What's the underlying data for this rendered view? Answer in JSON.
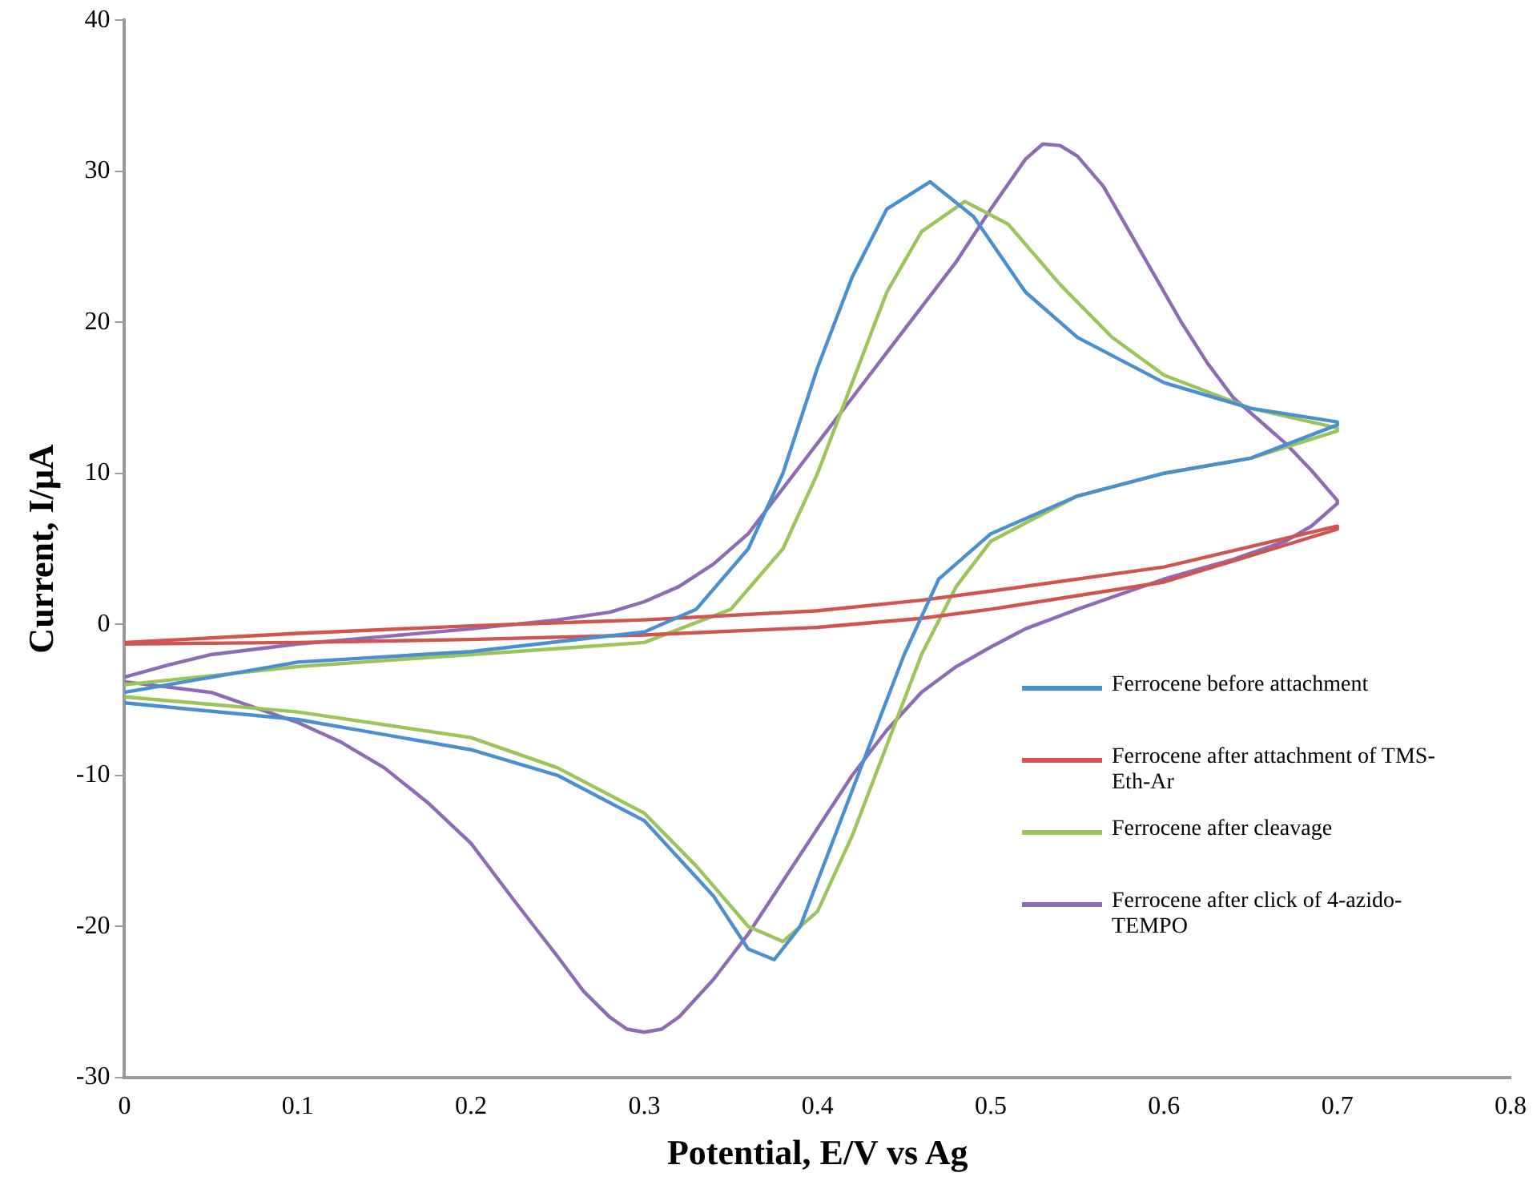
{
  "chart_data": {
    "type": "line",
    "xlabel": "Potential, E/V vs Ag",
    "ylabel": "Current, I/μA",
    "xlim": [
      0,
      0.8
    ],
    "xticks": [
      0,
      0.1,
      0.2,
      0.3,
      0.4,
      0.5,
      0.6,
      0.7,
      0.8
    ],
    "ylim": [
      -30,
      40
    ],
    "yticks": [
      -30,
      -20,
      -10,
      0,
      10,
      20,
      30,
      40
    ],
    "grid": false,
    "legend": "right",
    "marker": "none",
    "line_style": "solid",
    "series": [
      {
        "name": "Ferrocene before attachment",
        "color": "#4a8fcf",
        "x": [
          0,
          0.1,
          0.2,
          0.3,
          0.33,
          0.36,
          0.38,
          0.4,
          0.42,
          0.44,
          0.465,
          0.49,
          0.52,
          0.55,
          0.6,
          0.65,
          0.7,
          0.7,
          0.65,
          0.6,
          0.55,
          0.5,
          0.47,
          0.45,
          0.43,
          0.41,
          0.39,
          0.375,
          0.36,
          0.34,
          0.3,
          0.25,
          0.2,
          0.1,
          0
        ],
        "values": [
          -4.5,
          -2.5,
          -1.8,
          -0.5,
          1,
          5,
          10,
          17,
          23,
          27.5,
          29.3,
          27,
          22,
          19,
          16,
          14.3,
          13.4,
          13.2,
          11,
          10,
          8.5,
          6,
          3,
          -2,
          -8,
          -14,
          -20,
          -22.2,
          -21.5,
          -18,
          -13,
          -10,
          -8.3,
          -6.3,
          -5.2
        ]
      },
      {
        "name": "Ferrocene after attachment of TMS-Eth-Ar",
        "color": "#d0554f",
        "x": [
          0,
          0.1,
          0.2,
          0.3,
          0.4,
          0.46,
          0.5,
          0.6,
          0.7,
          0.7,
          0.6,
          0.5,
          0.46,
          0.4,
          0.3,
          0.2,
          0.1,
          0
        ],
        "values": [
          -1.2,
          -0.6,
          -0.1,
          0.3,
          0.9,
          1.6,
          2.2,
          3.8,
          6.5,
          6.3,
          2.8,
          1,
          0.4,
          -0.2,
          -0.7,
          -1,
          -1.2,
          -1.3
        ]
      },
      {
        "name": "Ferrocene after cleavage",
        "color": "#9bc45a",
        "x": [
          0,
          0.1,
          0.2,
          0.3,
          0.35,
          0.38,
          0.4,
          0.42,
          0.44,
          0.46,
          0.485,
          0.51,
          0.54,
          0.57,
          0.6,
          0.65,
          0.7,
          0.7,
          0.65,
          0.6,
          0.55,
          0.5,
          0.48,
          0.46,
          0.44,
          0.42,
          0.4,
          0.38,
          0.36,
          0.33,
          0.3,
          0.25,
          0.2,
          0.1,
          0
        ],
        "values": [
          -4,
          -2.8,
          -2,
          -1.2,
          1,
          5,
          10,
          16,
          22,
          26,
          28,
          26.5,
          22.5,
          19,
          16.5,
          14.3,
          13,
          12.8,
          11,
          10,
          8.5,
          5.5,
          2.5,
          -2,
          -8,
          -14,
          -19,
          -21,
          -20,
          -16,
          -12.5,
          -9.5,
          -7.5,
          -5.8,
          -4.8
        ]
      },
      {
        "name": "Ferrocene after click of 4-azido-TEMPO",
        "color": "#8e6bb5",
        "x": [
          0,
          0.025,
          0.05,
          0.1,
          0.15,
          0.2,
          0.25,
          0.28,
          0.3,
          0.32,
          0.34,
          0.36,
          0.38,
          0.4,
          0.42,
          0.44,
          0.46,
          0.48,
          0.5,
          0.52,
          0.53,
          0.54,
          0.55,
          0.565,
          0.58,
          0.595,
          0.61,
          0.625,
          0.64,
          0.655,
          0.67,
          0.685,
          0.7,
          0.7,
          0.685,
          0.67,
          0.64,
          0.6,
          0.55,
          0.52,
          0.5,
          0.48,
          0.46,
          0.44,
          0.42,
          0.4,
          0.38,
          0.36,
          0.34,
          0.32,
          0.31,
          0.3,
          0.29,
          0.28,
          0.265,
          0.25,
          0.225,
          0.2,
          0.175,
          0.15,
          0.125,
          0.1,
          0.05,
          0
        ],
        "values": [
          -3.5,
          -2.7,
          -2,
          -1.3,
          -0.8,
          -0.3,
          0.3,
          0.8,
          1.5,
          2.5,
          4,
          6,
          9,
          12,
          15,
          18,
          21,
          24,
          27.5,
          30.8,
          31.8,
          31.7,
          31,
          29,
          26,
          23,
          20,
          17.3,
          15,
          13.5,
          12,
          10.2,
          8.2,
          8,
          6.5,
          5.5,
          4.3,
          3,
          1,
          -0.3,
          -1.5,
          -2.8,
          -4.5,
          -7,
          -10,
          -13.5,
          -17,
          -20.5,
          -23.5,
          -26,
          -26.8,
          -27,
          -26.8,
          -26,
          -24.3,
          -22,
          -18.3,
          -14.5,
          -11.8,
          -9.5,
          -7.8,
          -6.5,
          -4.5,
          -3.8
        ]
      }
    ]
  }
}
